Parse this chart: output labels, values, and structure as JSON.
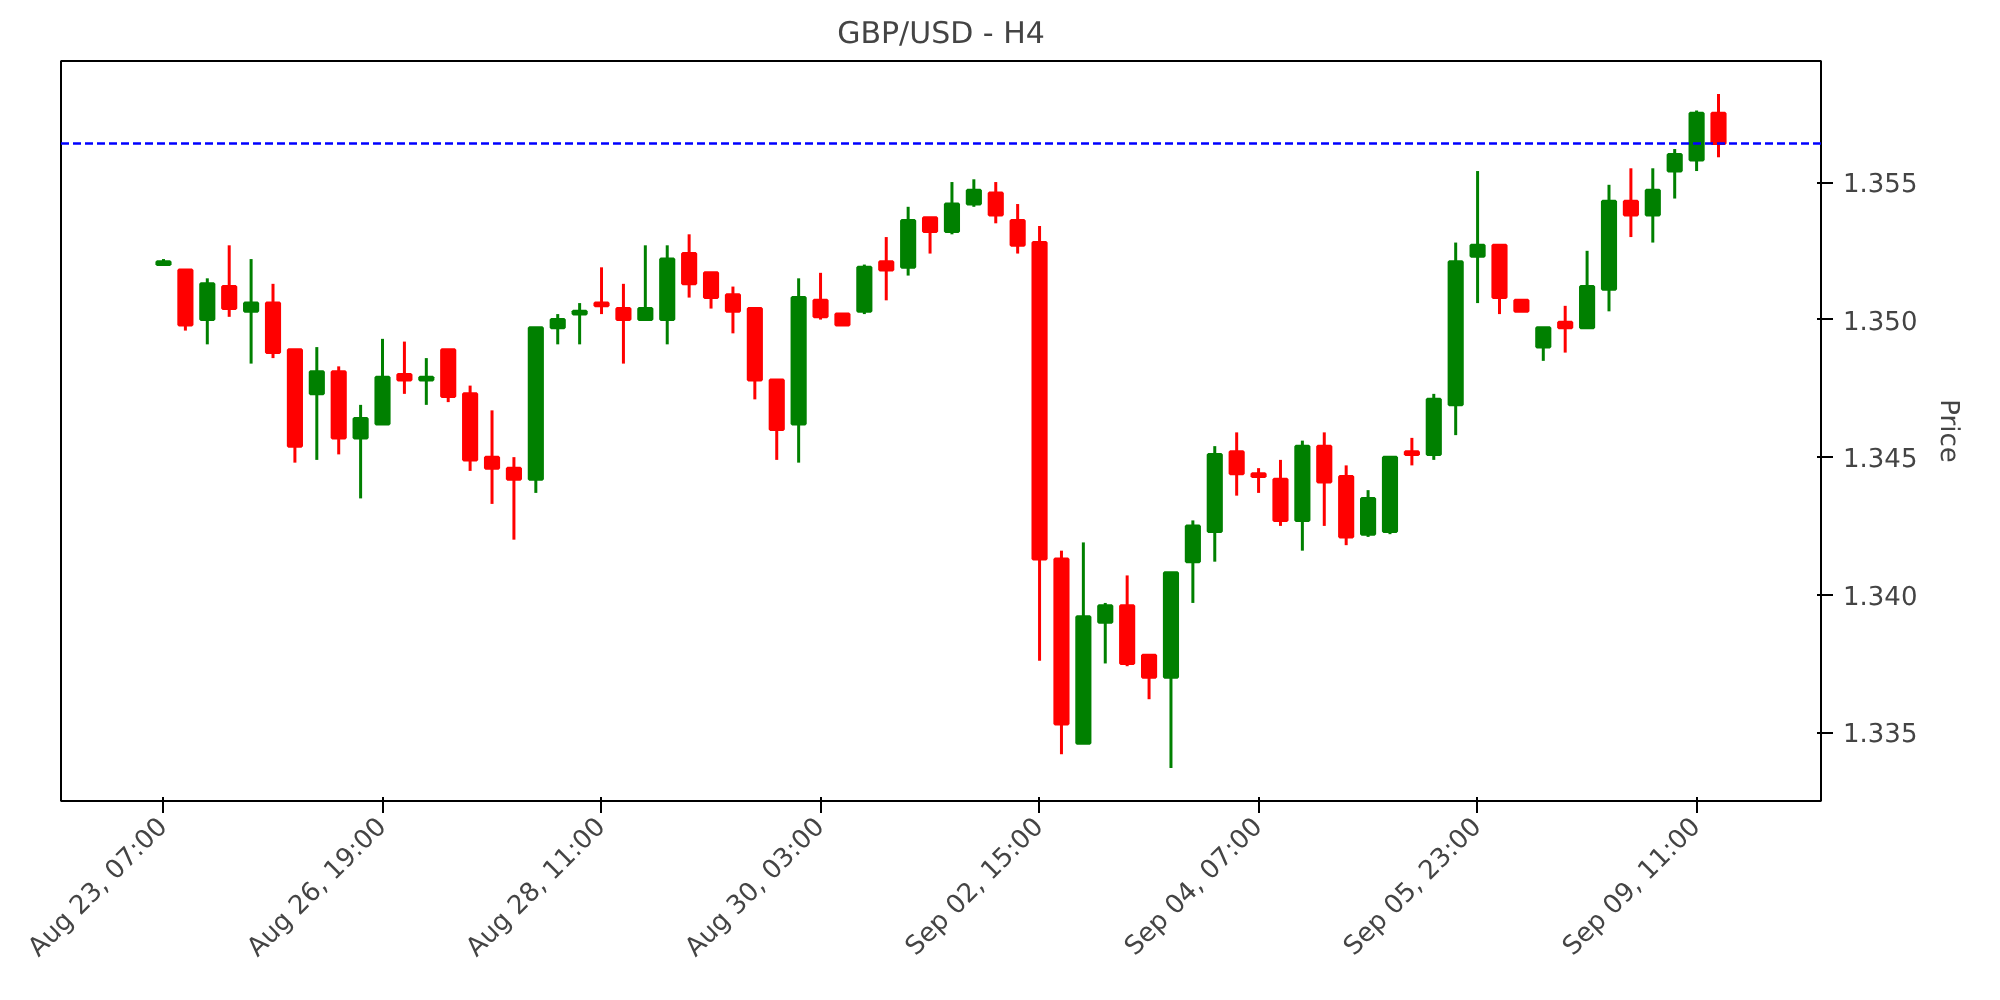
{
  "chart_data": {
    "type": "candlestick",
    "title": "GBP/USD - H4",
    "ylabel": "Price",
    "categories": [
      "Aug 23, 07:00",
      null,
      null,
      null,
      null,
      null,
      null,
      null,
      null,
      null,
      "Aug 26, 19:00",
      null,
      null,
      null,
      null,
      null,
      null,
      null,
      null,
      null,
      "Aug 28, 11:00",
      null,
      null,
      null,
      null,
      null,
      null,
      null,
      null,
      null,
      "Aug 30, 03:00",
      null,
      null,
      null,
      null,
      null,
      null,
      null,
      null,
      null,
      "Sep 02, 15:00",
      null,
      null,
      null,
      null,
      null,
      null,
      null,
      null,
      null,
      "Sep 04, 07:00",
      null,
      null,
      null,
      null,
      null,
      null,
      null,
      null,
      null,
      "Sep 05, 23:00",
      null,
      null,
      null,
      null,
      null,
      null,
      null,
      null,
      null,
      "Sep 09, 11:00",
      null
    ],
    "ohlc": [
      [
        1.352,
        1.3522,
        1.352,
        1.3521
      ],
      [
        1.3518,
        1.3518,
        1.3496,
        1.3498
      ],
      [
        1.35,
        1.3515,
        1.3491,
        1.3513
      ],
      [
        1.3512,
        1.3527,
        1.3501,
        1.3504
      ],
      [
        1.3503,
        1.3522,
        1.3484,
        1.3506
      ],
      [
        1.3506,
        1.3513,
        1.3486,
        1.3488
      ],
      [
        1.3489,
        1.3489,
        1.3448,
        1.3454
      ],
      [
        1.3473,
        1.349,
        1.3449,
        1.3481
      ],
      [
        1.3481,
        1.3483,
        1.3451,
        1.3457
      ],
      [
        1.3457,
        1.3469,
        1.3435,
        1.3464
      ],
      [
        1.3462,
        1.3493,
        1.3462,
        1.3479
      ],
      [
        1.348,
        1.3492,
        1.3473,
        1.3478
      ],
      [
        1.3478,
        1.3486,
        1.3469,
        1.3479
      ],
      [
        1.3489,
        1.3489,
        1.347,
        1.3472
      ],
      [
        1.3473,
        1.3476,
        1.3445,
        1.3449
      ],
      [
        1.345,
        1.3467,
        1.3433,
        1.3446
      ],
      [
        1.3446,
        1.345,
        1.342,
        1.3442
      ],
      [
        1.3442,
        1.3497,
        1.3437,
        1.3497
      ],
      [
        1.3497,
        1.3502,
        1.3491,
        1.35
      ],
      [
        1.3502,
        1.3506,
        1.3491,
        1.3503
      ],
      [
        1.3506,
        1.3519,
        1.3502,
        1.3505
      ],
      [
        1.3504,
        1.3513,
        1.3484,
        1.35
      ],
      [
        1.35,
        1.3527,
        1.35,
        1.3504
      ],
      [
        1.35,
        1.3527,
        1.3491,
        1.3522
      ],
      [
        1.3524,
        1.3531,
        1.3508,
        1.3513
      ],
      [
        1.3517,
        1.3517,
        1.3504,
        1.3508
      ],
      [
        1.3509,
        1.3512,
        1.3495,
        1.3503
      ],
      [
        1.3504,
        1.3504,
        1.3471,
        1.3478
      ],
      [
        1.3478,
        1.3478,
        1.3449,
        1.346
      ],
      [
        1.3462,
        1.3515,
        1.3448,
        1.3508
      ],
      [
        1.3507,
        1.3517,
        1.35,
        1.3501
      ],
      [
        1.3502,
        1.3502,
        1.3498,
        1.3498
      ],
      [
        1.3503,
        1.352,
        1.3502,
        1.3519
      ],
      [
        1.3521,
        1.353,
        1.3507,
        1.3518
      ],
      [
        1.3519,
        1.3541,
        1.3516,
        1.3536
      ],
      [
        1.3537,
        1.3537,
        1.3524,
        1.3532
      ],
      [
        1.3532,
        1.355,
        1.3531,
        1.3542
      ],
      [
        1.3542,
        1.3551,
        1.3541,
        1.3547
      ],
      [
        1.3546,
        1.355,
        1.3535,
        1.3538
      ],
      [
        1.3536,
        1.3542,
        1.3524,
        1.3527
      ],
      [
        1.3528,
        1.3534,
        1.3376,
        1.3413
      ],
      [
        1.3413,
        1.3416,
        1.3342,
        1.3353
      ],
      [
        1.3346,
        1.3419,
        1.3346,
        1.3392
      ],
      [
        1.339,
        1.3397,
        1.3375,
        1.3396
      ],
      [
        1.3396,
        1.3407,
        1.3374,
        1.3375
      ],
      [
        1.3378,
        1.3378,
        1.3362,
        1.337
      ],
      [
        1.337,
        1.3408,
        1.3337,
        1.3408
      ],
      [
        1.3412,
        1.3427,
        1.3397,
        1.3425
      ],
      [
        1.3423,
        1.3454,
        1.3412,
        1.3451
      ],
      [
        1.3452,
        1.3459,
        1.3436,
        1.3444
      ],
      [
        1.3444,
        1.3446,
        1.3437,
        1.3443
      ],
      [
        1.3442,
        1.3449,
        1.3425,
        1.3427
      ],
      [
        1.3427,
        1.3456,
        1.3416,
        1.3454
      ],
      [
        1.3454,
        1.3459,
        1.3425,
        1.3441
      ],
      [
        1.3443,
        1.3447,
        1.3418,
        1.3421
      ],
      [
        1.3422,
        1.3438,
        1.3421,
        1.3435
      ],
      [
        1.3423,
        1.345,
        1.3422,
        1.345
      ],
      [
        1.3452,
        1.3457,
        1.3447,
        1.3451
      ],
      [
        1.3451,
        1.3473,
        1.3449,
        1.3471
      ],
      [
        1.3469,
        1.3528,
        1.3458,
        1.3521
      ],
      [
        1.3523,
        1.3554,
        1.3506,
        1.3527
      ],
      [
        1.3527,
        1.3527,
        1.3502,
        1.3508
      ],
      [
        1.3507,
        1.3507,
        1.3503,
        1.3503
      ],
      [
        1.349,
        1.3497,
        1.3485,
        1.3497
      ],
      [
        1.3499,
        1.3505,
        1.3488,
        1.3497
      ],
      [
        1.3497,
        1.3525,
        1.3497,
        1.3512
      ],
      [
        1.3511,
        1.3549,
        1.3503,
        1.3543
      ],
      [
        1.3543,
        1.3555,
        1.353,
        1.3538
      ],
      [
        1.3538,
        1.3555,
        1.3528,
        1.3547
      ],
      [
        1.3554,
        1.3562,
        1.3544,
        1.356
      ],
      [
        1.3558,
        1.3576,
        1.3554,
        1.3575
      ],
      [
        1.3575,
        1.3582,
        1.3559,
        1.3564
      ]
    ],
    "colors": [
      "#008000",
      "#ff0000",
      "#008000",
      "#ff0000",
      "#008000",
      "#ff0000",
      "#ff0000",
      "#008000",
      "#ff0000",
      "#008000",
      "#008000",
      "#ff0000",
      "#008000",
      "#ff0000",
      "#ff0000",
      "#ff0000",
      "#ff0000",
      "#008000",
      "#008000",
      "#008000",
      "#ff0000",
      "#ff0000",
      "#008000",
      "#008000",
      "#ff0000",
      "#ff0000",
      "#ff0000",
      "#ff0000",
      "#ff0000",
      "#008000",
      "#ff0000",
      "#ff0000",
      "#008000",
      "#ff0000",
      "#008000",
      "#ff0000",
      "#008000",
      "#008000",
      "#ff0000",
      "#ff0000",
      "#ff0000",
      "#ff0000",
      "#008000",
      "#008000",
      "#ff0000",
      "#ff0000",
      "#008000",
      "#008000",
      "#008000",
      "#ff0000",
      "#ff0000",
      "#ff0000",
      "#008000",
      "#ff0000",
      "#ff0000",
      "#008000",
      "#008000",
      "#ff0000",
      "#008000",
      "#008000",
      "#008000",
      "#ff0000",
      "#ff0000",
      "#008000",
      "#ff0000",
      "#008000",
      "#008000",
      "#ff0000",
      "#008000",
      "#008000",
      "#008000",
      "#ff0000"
    ],
    "ylim": [
      1.3325,
      1.3594
    ],
    "yticks": [
      1.335,
      {
        "value": 1.34,
        "label": "1.340"
      },
      1.345,
      {
        "value": 1.35,
        "label": "1.350"
      },
      1.355
    ],
    "ref_lines": [
      {
        "axis": "y",
        "value": 1.3564,
        "color": "#0000ff",
        "line_style": "dashed"
      }
    ],
    "grid": false
  }
}
